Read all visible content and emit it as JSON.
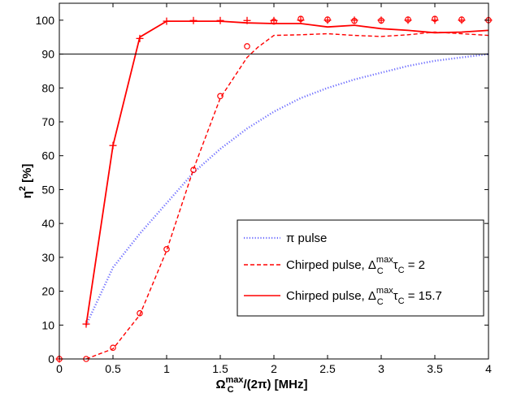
{
  "chart_data": {
    "type": "line",
    "xlim": [
      0,
      4
    ],
    "ylim": [
      0,
      105
    ],
    "x_ticks": [
      0,
      0.5,
      1,
      1.5,
      2,
      2.5,
      3,
      3.5,
      4
    ],
    "x_tick_labels": [
      "0",
      "0.5",
      "1",
      "1.5",
      "2",
      "2.5",
      "3",
      "3.5",
      "4"
    ],
    "y_ticks": [
      0,
      10,
      20,
      30,
      40,
      50,
      60,
      70,
      80,
      90,
      100
    ],
    "y_tick_labels": [
      "0",
      "10",
      "20",
      "30",
      "40",
      "50",
      "60",
      "70",
      "80",
      "90",
      "100"
    ],
    "xlabel": {
      "main": "Ω",
      "sub": "C",
      "sup": "max",
      "rest": "/(2π)  [MHz]"
    },
    "ylabel": {
      "main": "η",
      "sup": "2",
      "rest": "  [%]"
    },
    "reference_line_y": 90,
    "grid": false,
    "legend_position": "bottom-right",
    "colors": {
      "red": "#ff0000",
      "blue": "#6f6fff",
      "black": "#000000"
    },
    "series": [
      {
        "name": "π pulse",
        "style": "dotted",
        "color": "#6f6fff",
        "x": [
          0.25,
          0.5,
          0.75,
          1.0,
          1.25,
          1.5,
          1.75,
          2.0,
          2.25,
          2.5,
          2.75,
          3.0,
          3.25,
          3.5,
          3.75,
          4.0
        ],
        "y": [
          10,
          27,
          37,
          46,
          55,
          62,
          68,
          73,
          77,
          80,
          82.5,
          84.5,
          86.5,
          88,
          89,
          90
        ]
      },
      {
        "name": "Chirped pulse, ΔCmaxτC = 2",
        "legend": {
          "pre": "Chirped pulse, Δ",
          "sup": "max",
          "sub": "C",
          "mid": "τ",
          "sub2": "C",
          "post": " = 2"
        },
        "style": "dashed",
        "color": "#ff0000",
        "x": [
          0.25,
          0.5,
          0.75,
          1.0,
          1.25,
          1.5,
          1.75,
          1.85,
          2.0,
          2.25,
          2.5,
          2.75,
          3.0,
          3.25,
          3.5,
          3.75,
          4.0
        ],
        "y": [
          0,
          3,
          13,
          32,
          56,
          77,
          89,
          92,
          95.5,
          95.7,
          96,
          95.5,
          95.2,
          95.7,
          96.5,
          96,
          95.5
        ]
      },
      {
        "name": "Chirped pulse, ΔCmaxτC = 15.7",
        "legend": {
          "pre": "Chirped pulse, Δ",
          "sup": "max",
          "sub": "C",
          "mid": "τ",
          "sub2": "C",
          "post": " = 15.7"
        },
        "style": "solid",
        "color": "#ff0000",
        "x": [
          0.25,
          0.5,
          0.75,
          1.0,
          1.25,
          1.5,
          1.75,
          2.0,
          2.25,
          2.5,
          2.75,
          3.0,
          3.25,
          3.5,
          3.75,
          4.0
        ],
        "y": [
          10,
          63,
          95,
          99.7,
          99.7,
          99.7,
          99.2,
          99,
          99,
          98,
          98.5,
          97.5,
          97,
          96.3,
          96.5,
          97
        ]
      }
    ],
    "markers": [
      {
        "symbol": "plus",
        "color": "#ff0000",
        "x": [
          0,
          0.25,
          0.5,
          0.75,
          1.0,
          1.25,
          1.5,
          1.75,
          2.0,
          2.25,
          2.5,
          2.75,
          3.0,
          3.25,
          3.5,
          3.75,
          4.0
        ],
        "y": [
          0,
          10.3,
          63,
          94.6,
          99.7,
          99.9,
          99.9,
          99.9,
          99.9,
          100,
          100,
          100,
          100,
          100,
          100,
          100,
          100
        ]
      },
      {
        "symbol": "circle",
        "color": "#ff0000",
        "x": [
          0,
          0.25,
          0.5,
          0.75,
          1.0,
          1.25,
          1.5,
          1.75,
          2.0,
          2.25,
          2.5,
          2.75,
          3.0,
          3.25,
          3.5,
          3.75,
          4.0
        ],
        "y": [
          0,
          0,
          3.3,
          13.5,
          32.4,
          55.8,
          77.6,
          92.3,
          99.6,
          100.4,
          100.2,
          99.8,
          99.9,
          100.2,
          100.4,
          100.2,
          100
        ]
      }
    ]
  }
}
